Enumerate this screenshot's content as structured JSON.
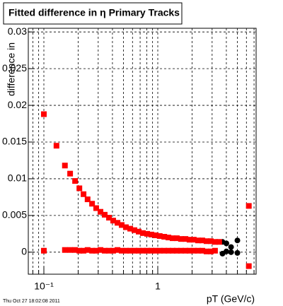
{
  "chart_data": {
    "type": "scatter",
    "title": "Fitted difference in  η  Primary Tracks",
    "x_label": "pT (GeV/c)",
    "y_label": "difference in",
    "timestamp": "Thu Oct 27 18:02:08 2011",
    "x_log": true,
    "grid": true,
    "xlim": [
      0.073,
      7.3
    ],
    "ylim": [
      -0.003,
      0.0305
    ],
    "xticks": [
      {
        "value": 0.1,
        "label": "10⁻¹"
      },
      1
    ],
    "xminor": [
      0.08,
      0.09,
      0.2,
      0.3,
      0.4,
      0.5,
      0.6,
      0.7,
      0.8,
      0.9,
      2,
      3,
      4,
      5,
      6,
      7
    ],
    "yticks": [
      0,
      0.005,
      0.01,
      0.015,
      0.02,
      0.025,
      0.03
    ],
    "series": [
      {
        "color": "#000000",
        "x": [
          3.7,
          4.0,
          4.4,
          5.0
        ],
        "values": [
          0.0014,
          0.0012,
          0.0007,
          0.0016
        ]
      },
      {
        "color": "#000000",
        "x": [
          0.1,
          3.7,
          4.0,
          4.4,
          5.0
        ],
        "values": [
          0.0002,
          -0.0002,
          0.0001,
          0.0,
          -0.0001
        ]
      },
      {
        "color": "#ff0000",
        "x": [
          0.1,
          0.129,
          0.153,
          0.17,
          0.188,
          0.205,
          0.223,
          0.242,
          0.265,
          0.288,
          0.314,
          0.342,
          0.373,
          0.406,
          0.443,
          0.482,
          0.525,
          0.573,
          0.624,
          0.68,
          0.74,
          0.807,
          0.879,
          0.958,
          1.04,
          1.14,
          1.24,
          1.35,
          1.47,
          1.6,
          1.75,
          1.9,
          2.07,
          2.26,
          2.46,
          2.68,
          2.92,
          3.18,
          3.46,
          6.3
        ],
        "values": [
          0.0188,
          0.0145,
          0.0118,
          0.0107,
          0.0097,
          0.0087,
          0.0079,
          0.0072,
          0.0066,
          0.006,
          0.0055,
          0.0051,
          0.0047,
          0.0043,
          0.004,
          0.0037,
          0.0034,
          0.0032,
          0.003,
          0.0028,
          0.0026,
          0.0025,
          0.0024,
          0.0023,
          0.0022,
          0.0021,
          0.002,
          0.0019,
          0.0019,
          0.0018,
          0.0018,
          0.0017,
          0.0017,
          0.0016,
          0.0016,
          0.0015,
          0.0015,
          0.0014,
          0.0014,
          0.0063
        ]
      },
      {
        "color": "#ff0000",
        "x": [
          0.1,
          0.153,
          0.17,
          0.188,
          0.205,
          0.223,
          0.242,
          0.265,
          0.288,
          0.314,
          0.342,
          0.373,
          0.406,
          0.443,
          0.482,
          0.525,
          0.573,
          0.624,
          0.68,
          0.74,
          0.807,
          0.879,
          0.958,
          1.04,
          1.14,
          1.24,
          1.35,
          1.47,
          1.6,
          1.75,
          1.9,
          2.07,
          2.26,
          2.46,
          2.68,
          2.92,
          3.18,
          6.3
        ],
        "values": [
          0.0002,
          0.0003,
          0.0003,
          0.0003,
          0.0002,
          0.0002,
          0.0003,
          0.0002,
          0.0002,
          0.0003,
          0.0002,
          0.0002,
          0.0002,
          0.0003,
          0.0002,
          0.0002,
          0.0002,
          0.0002,
          0.0002,
          0.0002,
          0.0002,
          0.0002,
          0.0002,
          0.0002,
          0.0002,
          0.0002,
          0.0002,
          0.0002,
          0.0002,
          0.0002,
          0.0002,
          0.0002,
          0.0002,
          0.0002,
          0.0001,
          0.0001,
          0.0002,
          -0.0019
        ]
      }
    ]
  }
}
